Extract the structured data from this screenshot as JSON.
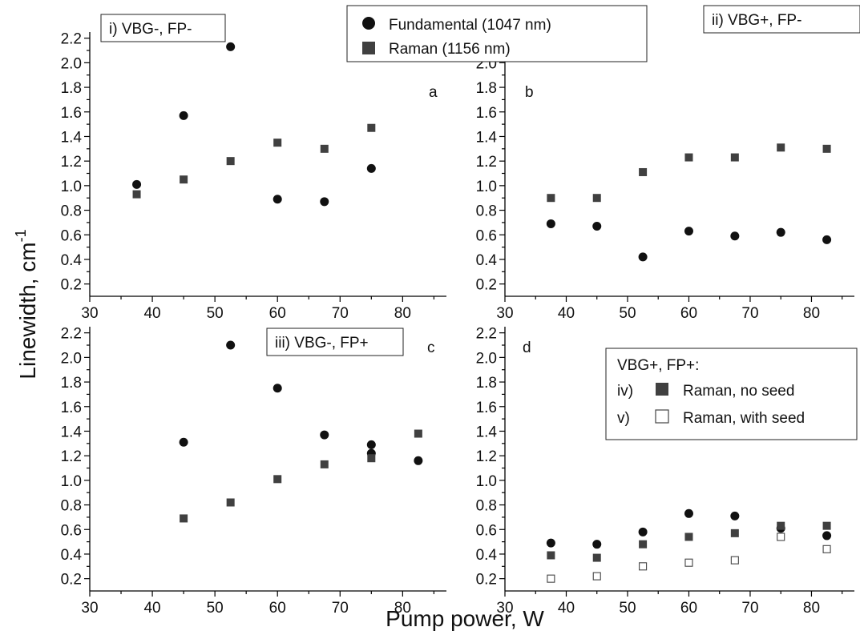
{
  "figure": {
    "ylabel": "Linewidth, cm",
    "ylabel_superscript": "-1",
    "xlabel": "Pump power, W",
    "legend": {
      "placement": "top-center",
      "entries": [
        {
          "marker": "circle-filled",
          "label": "Fundamental (1047 nm)"
        },
        {
          "marker": "square-filled",
          "label": "Raman (1156 nm)"
        }
      ]
    },
    "colors": {
      "fundamental": "#111111",
      "raman": "#404040",
      "raman_seed": "#ffffff"
    }
  },
  "chart_data": [
    {
      "type": "scatter",
      "panel_letter": "a",
      "condition_label": "i) VBG-, FP-",
      "xlim": [
        30,
        87
      ],
      "ylim": [
        0.1,
        2.25
      ],
      "x_ticks": [
        "30",
        "40",
        "50",
        "60",
        "70",
        "80"
      ],
      "y_ticks": [
        "0.2",
        "0.4",
        "0.6",
        "0.8",
        "1.0",
        "1.2",
        "1.4",
        "1.6",
        "1.8",
        "2.0",
        "2.2"
      ],
      "series": [
        {
          "name": "Fundamental (1047 nm)",
          "marker": "circle-filled",
          "x": [
            37.5,
            45,
            52.5,
            60,
            67.5,
            75
          ],
          "y": [
            1.01,
            1.57,
            2.13,
            0.89,
            0.87,
            1.14
          ]
        },
        {
          "name": "Raman (1156 nm)",
          "marker": "square-filled",
          "x": [
            37.5,
            45,
            52.5,
            60,
            67.5,
            75
          ],
          "y": [
            0.93,
            1.05,
            1.2,
            1.35,
            1.3,
            1.47
          ]
        }
      ]
    },
    {
      "type": "scatter",
      "panel_letter": "b",
      "condition_label": "ii) VBG+, FP-",
      "xlim": [
        30,
        87
      ],
      "ylim": [
        0.1,
        2.25
      ],
      "x_ticks": [
        "30",
        "40",
        "50",
        "60",
        "70",
        "80"
      ],
      "y_ticks": [
        "0.2",
        "0.4",
        "0.6",
        "0.8",
        "1.0",
        "1.2",
        "1.4",
        "1.6",
        "1.8",
        "2.0"
      ],
      "series": [
        {
          "name": "Fundamental (1047 nm)",
          "marker": "circle-filled",
          "x": [
            37.5,
            45,
            52.5,
            60,
            67.5,
            75,
            82.5
          ],
          "y": [
            0.69,
            0.67,
            0.42,
            0.63,
            0.59,
            0.62,
            0.56
          ]
        },
        {
          "name": "Raman (1156 nm)",
          "marker": "square-filled",
          "x": [
            37.5,
            45,
            52.5,
            60,
            67.5,
            75,
            82.5
          ],
          "y": [
            0.9,
            0.9,
            1.11,
            1.23,
            1.23,
            1.31,
            1.3
          ]
        }
      ]
    },
    {
      "type": "scatter",
      "panel_letter": "c",
      "condition_label": "iii) VBG-, FP+",
      "xlim": [
        30,
        87
      ],
      "ylim": [
        0.1,
        2.25
      ],
      "x_ticks": [
        "30",
        "40",
        "50",
        "60",
        "70",
        "80"
      ],
      "y_ticks": [
        "0.2",
        "0.4",
        "0.6",
        "0.8",
        "1.0",
        "1.2",
        "1.4",
        "1.6",
        "1.8",
        "2.0",
        "2.2"
      ],
      "series": [
        {
          "name": "Fundamental (1047 nm)",
          "marker": "circle-filled",
          "x": [
            45,
            52.5,
            60,
            67.5,
            75,
            75,
            82.5
          ],
          "y": [
            1.31,
            2.1,
            1.75,
            1.37,
            1.29,
            1.22,
            1.16
          ]
        },
        {
          "name": "Raman (1156 nm)",
          "marker": "square-filled",
          "x": [
            45,
            52.5,
            60,
            67.5,
            75,
            82.5
          ],
          "y": [
            0.69,
            0.82,
            1.01,
            1.13,
            1.18,
            1.38
          ]
        }
      ]
    },
    {
      "type": "scatter",
      "panel_letter": "d",
      "condition_label": "VBG+, FP+:",
      "legend": {
        "title": "VBG+, FP+:",
        "entries": [
          {
            "prefix": "iv)",
            "marker": "square-filled",
            "label": "Raman, no seed"
          },
          {
            "prefix": "v)",
            "marker": "square-open",
            "label": "Raman, with seed"
          }
        ]
      },
      "xlim": [
        30,
        87
      ],
      "ylim": [
        0.1,
        2.25
      ],
      "x_ticks": [
        "30",
        "40",
        "50",
        "60",
        "70",
        "80"
      ],
      "y_ticks": [
        "0.2",
        "0.4",
        "0.6",
        "0.8",
        "1.0",
        "1.2",
        "1.4",
        "1.6",
        "1.8",
        "2.0",
        "2.2"
      ],
      "series": [
        {
          "name": "Fundamental (1047 nm)",
          "marker": "circle-filled",
          "x": [
            37.5,
            45,
            52.5,
            60,
            67.5,
            75,
            82.5
          ],
          "y": [
            0.49,
            0.48,
            0.58,
            0.73,
            0.71,
            0.61,
            0.55
          ]
        },
        {
          "name": "Raman, no seed",
          "marker": "square-filled",
          "x": [
            37.5,
            45,
            52.5,
            60,
            67.5,
            75,
            82.5
          ],
          "y": [
            0.39,
            0.37,
            0.48,
            0.54,
            0.57,
            0.63,
            0.63
          ]
        },
        {
          "name": "Raman, with seed",
          "marker": "square-open",
          "x": [
            37.5,
            45,
            52.5,
            60,
            67.5,
            75,
            82.5
          ],
          "y": [
            0.2,
            0.22,
            0.3,
            0.33,
            0.35,
            0.54,
            0.44
          ]
        }
      ]
    }
  ]
}
